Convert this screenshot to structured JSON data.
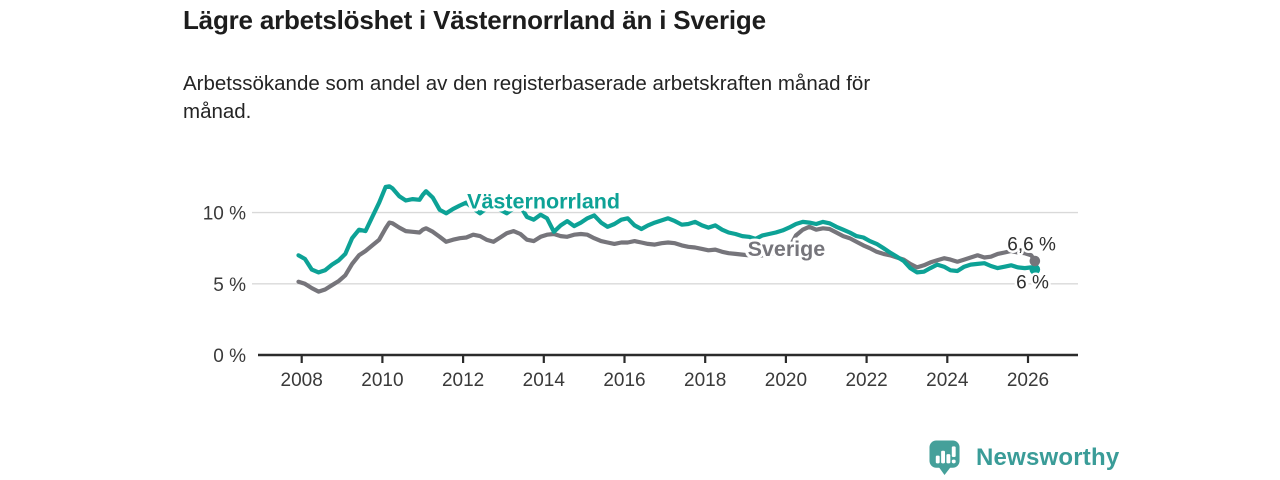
{
  "header": {
    "title": "Lägre arbetslöshet i Västernorrland än i Sverige",
    "subtitle_lines": [
      "Arbetssökande som andel av den registerbaserade arbetskraften månad för",
      "månad."
    ]
  },
  "footer": {
    "brand": "Newsworthy"
  },
  "colors": {
    "vasternorrland": "#0da296",
    "sverige": "#76757b",
    "grid": "#d9d9d9",
    "axis": "#2b2b2b",
    "tick_text": "#3a3a3a",
    "end_label_text": "#2e2e2e",
    "logo": "#45a09a",
    "logo_text": "#3a9c98",
    "background": "#ffffff"
  },
  "chart_data": {
    "type": "line",
    "title": "Lägre arbetslöshet i Västernorrland än i Sverige",
    "subtitle": "Arbetssökande som andel av den registerbaserade arbetskraften månad för månad.",
    "xlabel": "",
    "ylabel": "",
    "grid": "horizontal",
    "legend_position": "inline-labels",
    "xlim": [
      2007.8,
      2027.25
    ],
    "ylim": [
      0,
      13.8
    ],
    "y_ticks": [
      "0 %",
      "5 %",
      "10 %"
    ],
    "y_tick_values": [
      0,
      5,
      10
    ],
    "x_ticks": [
      "2008",
      "2010",
      "2012",
      "2014",
      "2016",
      "2018",
      "2020",
      "2022",
      "2024",
      "2026"
    ],
    "x_tick_values": [
      2008,
      2010,
      2012,
      2014,
      2016,
      2018,
      2020,
      2022,
      2024,
      2026
    ],
    "x": [
      2007.92,
      2008.08,
      2008.25,
      2008.42,
      2008.58,
      2008.75,
      2008.92,
      2009.08,
      2009.25,
      2009.42,
      2009.58,
      2009.75,
      2009.92,
      2010.08,
      2010.17,
      2010.25,
      2010.42,
      2010.58,
      2010.75,
      2010.92,
      2011.0,
      2011.08,
      2011.25,
      2011.42,
      2011.58,
      2011.75,
      2011.92,
      2012.08,
      2012.25,
      2012.42,
      2012.58,
      2012.75,
      2012.92,
      2013.08,
      2013.25,
      2013.42,
      2013.58,
      2013.75,
      2013.92,
      2014.08,
      2014.25,
      2014.42,
      2014.58,
      2014.75,
      2014.92,
      2015.08,
      2015.25,
      2015.42,
      2015.58,
      2015.75,
      2015.92,
      2016.08,
      2016.25,
      2016.42,
      2016.58,
      2016.75,
      2016.92,
      2017.08,
      2017.25,
      2017.42,
      2017.58,
      2017.75,
      2017.92,
      2018.08,
      2018.25,
      2018.42,
      2018.58,
      2018.75,
      2018.92,
      2019.08,
      2019.25,
      2019.42,
      2019.58,
      2019.75,
      2019.92,
      2020.08,
      2020.25,
      2020.42,
      2020.58,
      2020.75,
      2020.92,
      2021.08,
      2021.25,
      2021.42,
      2021.58,
      2021.75,
      2021.92,
      2022.08,
      2022.25,
      2022.42,
      2022.58,
      2022.75,
      2022.92,
      2023.08,
      2023.25,
      2023.42,
      2023.58,
      2023.75,
      2023.92,
      2024.08,
      2024.25,
      2024.42,
      2024.58,
      2024.75,
      2024.92,
      2025.08,
      2025.25,
      2025.42,
      2025.58,
      2025.75,
      2025.92,
      2026.08,
      2026.17
    ],
    "series": [
      {
        "id": "vasternorrland",
        "name": "Västernorrland",
        "color": "#0da296",
        "end_label": "6 %",
        "end_label_placement": "below",
        "label_anchor": {
          "x": 2012.1,
          "y": 10.3
        },
        "values": [
          7.0,
          6.75,
          6.0,
          5.8,
          5.95,
          6.35,
          6.65,
          7.1,
          8.2,
          8.8,
          8.7,
          9.7,
          10.7,
          11.8,
          11.85,
          11.7,
          11.15,
          10.85,
          10.95,
          10.9,
          11.25,
          11.5,
          11.05,
          10.2,
          9.95,
          10.25,
          10.5,
          10.7,
          10.3,
          9.95,
          10.3,
          10.45,
          10.2,
          9.95,
          10.3,
          10.45,
          9.7,
          9.5,
          9.85,
          9.6,
          8.65,
          9.1,
          9.4,
          9.05,
          9.3,
          9.6,
          9.8,
          9.3,
          9.0,
          9.2,
          9.5,
          9.6,
          9.1,
          8.85,
          9.1,
          9.3,
          9.45,
          9.6,
          9.4,
          9.15,
          9.2,
          9.35,
          9.1,
          8.95,
          9.1,
          8.8,
          8.6,
          8.5,
          8.35,
          8.3,
          8.15,
          8.4,
          8.5,
          8.6,
          8.75,
          8.95,
          9.2,
          9.35,
          9.3,
          9.2,
          9.35,
          9.25,
          9.0,
          8.8,
          8.6,
          8.35,
          8.25,
          8.0,
          7.8,
          7.5,
          7.2,
          6.9,
          6.6,
          6.1,
          5.8,
          5.85,
          6.1,
          6.35,
          6.2,
          5.95,
          5.9,
          6.2,
          6.35,
          6.4,
          6.45,
          6.25,
          6.1,
          6.2,
          6.3,
          6.15,
          6.1,
          6.15,
          6.0
        ]
      },
      {
        "id": "sverige",
        "name": "Sverige",
        "color": "#76757b",
        "end_label": "6,6 %",
        "end_label_placement": "above",
        "label_anchor": {
          "x": 2019.05,
          "y": 6.95
        },
        "values": [
          5.15,
          5.0,
          4.7,
          4.45,
          4.6,
          4.9,
          5.2,
          5.6,
          6.4,
          7.0,
          7.3,
          7.7,
          8.1,
          8.9,
          9.3,
          9.25,
          8.95,
          8.7,
          8.65,
          8.6,
          8.8,
          8.9,
          8.65,
          8.3,
          7.95,
          8.1,
          8.2,
          8.25,
          8.45,
          8.35,
          8.1,
          7.95,
          8.25,
          8.55,
          8.7,
          8.5,
          8.1,
          8.0,
          8.3,
          8.45,
          8.5,
          8.35,
          8.3,
          8.45,
          8.5,
          8.45,
          8.2,
          8.0,
          7.9,
          7.8,
          7.9,
          7.9,
          8.0,
          7.9,
          7.8,
          7.75,
          7.85,
          7.9,
          7.85,
          7.7,
          7.6,
          7.55,
          7.45,
          7.35,
          7.4,
          7.25,
          7.15,
          7.1,
          7.05,
          7.0,
          6.9,
          7.0,
          7.05,
          7.15,
          7.25,
          7.5,
          8.4,
          8.8,
          9.0,
          8.8,
          8.9,
          8.85,
          8.6,
          8.35,
          8.2,
          7.95,
          7.7,
          7.5,
          7.25,
          7.1,
          7.0,
          6.85,
          6.7,
          6.4,
          6.15,
          6.3,
          6.5,
          6.65,
          6.8,
          6.7,
          6.55,
          6.7,
          6.85,
          7.0,
          6.85,
          6.9,
          7.1,
          7.2,
          7.3,
          7.2,
          7.15,
          7.0,
          6.6
        ]
      }
    ]
  }
}
